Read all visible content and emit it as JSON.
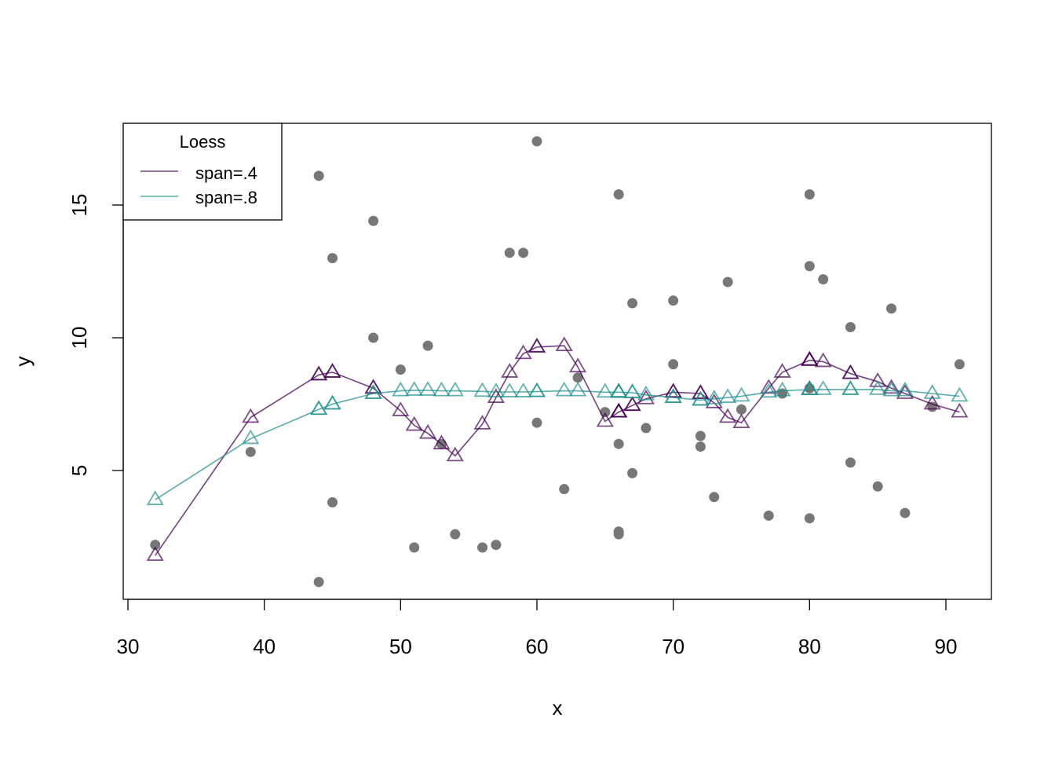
{
  "chart_data": {
    "type": "scatter",
    "title": "",
    "xlabel": "x",
    "ylabel": "y",
    "xlim": [
      29.8,
      93.5
    ],
    "ylim": [
      0.1,
      18.0
    ],
    "x_ticks": [
      30,
      40,
      50,
      60,
      70,
      80,
      90
    ],
    "y_ticks": [
      5,
      10,
      15
    ],
    "grid": false,
    "points": {
      "color": "#777777",
      "x": [
        32,
        39,
        44,
        44,
        45,
        45,
        48,
        48,
        50,
        51,
        52,
        53,
        54,
        56,
        57,
        58,
        59,
        60,
        60,
        62,
        63,
        65,
        66,
        66,
        66,
        66,
        67,
        67,
        68,
        70,
        70,
        72,
        72,
        73,
        74,
        75,
        77,
        78,
        80,
        80,
        80,
        80,
        81,
        83,
        83,
        85,
        86,
        87,
        89,
        91
      ],
      "y": [
        2.2,
        5.7,
        16.1,
        0.8,
        13.0,
        3.8,
        14.4,
        10.0,
        8.8,
        2.1,
        9.7,
        6.0,
        2.6,
        2.1,
        2.2,
        13.2,
        13.2,
        17.4,
        6.8,
        4.3,
        8.5,
        7.2,
        15.4,
        6.0,
        2.6,
        2.7,
        11.3,
        4.9,
        6.6,
        11.4,
        9.0,
        6.3,
        5.9,
        4.0,
        12.1,
        7.3,
        3.3,
        7.9,
        15.4,
        12.7,
        8.1,
        3.2,
        12.2,
        10.4,
        5.3,
        4.4,
        11.1,
        3.4,
        7.4,
        9.0
      ]
    },
    "legend": {
      "title": "Loess",
      "position": "top-left"
    },
    "series": [
      {
        "name": "span=.4",
        "color": "#440154",
        "marker": "triangle-open",
        "x": [
          32,
          39,
          44,
          45,
          48,
          50,
          51,
          52,
          53,
          54,
          56,
          57,
          58,
          59,
          60,
          62,
          63,
          65,
          66,
          67,
          68,
          70,
          72,
          73,
          74,
          75,
          77,
          78,
          80,
          81,
          83,
          85,
          86,
          87,
          89,
          91
        ],
        "y": [
          1.8,
          7.0,
          8.6,
          8.7,
          8.1,
          7.25,
          6.7,
          6.4,
          6.0,
          5.55,
          6.75,
          7.75,
          8.7,
          9.4,
          9.65,
          9.7,
          8.9,
          6.85,
          7.2,
          7.45,
          7.7,
          7.95,
          7.9,
          7.55,
          7.0,
          6.8,
          8.1,
          8.7,
          9.15,
          9.1,
          8.65,
          8.35,
          8.1,
          7.9,
          7.5,
          7.2
        ]
      },
      {
        "name": "span=.8",
        "color": "#21908C",
        "marker": "triangle-open",
        "x": [
          32,
          39,
          44,
          45,
          48,
          50,
          51,
          52,
          53,
          54,
          56,
          57,
          58,
          59,
          60,
          62,
          63,
          65,
          66,
          67,
          68,
          70,
          72,
          73,
          74,
          75,
          77,
          78,
          80,
          81,
          83,
          85,
          86,
          87,
          89,
          91
        ],
        "y": [
          3.9,
          6.2,
          7.3,
          7.5,
          7.9,
          8.0,
          8.02,
          8.02,
          8.0,
          8.0,
          7.98,
          7.96,
          7.96,
          7.96,
          7.97,
          8.0,
          8.0,
          7.95,
          7.95,
          7.93,
          7.85,
          7.75,
          7.65,
          7.7,
          7.75,
          7.8,
          7.95,
          8.0,
          8.05,
          8.05,
          8.05,
          8.05,
          8.0,
          8.0,
          7.9,
          7.8
        ]
      }
    ]
  }
}
